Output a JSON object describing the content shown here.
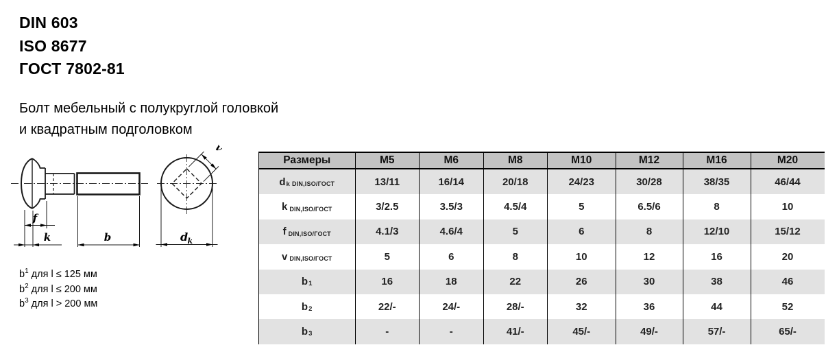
{
  "standards": [
    "DIN 603",
    "ISO 8677",
    "ГОСТ 7802-81"
  ],
  "title": {
    "line1": "Болт мебельный с полукруглой головкой",
    "line2": "и квадратным подголовком"
  },
  "drawing": {
    "labels": {
      "f": "f",
      "k": "k",
      "b": "b",
      "v": "v",
      "dk_main": "d",
      "dk_sub": "k"
    }
  },
  "footnotes": [
    {
      "main": "b",
      "sup": "1",
      "rest": "для l ≤ 125 мм"
    },
    {
      "main": "b",
      "sup": "2",
      "rest": "для l ≤ 200 мм"
    },
    {
      "main": "b",
      "sup": "3",
      "rest": "для l > 200 мм"
    }
  ],
  "table": {
    "headers": [
      "Размеры",
      "M5",
      "M6",
      "M8",
      "M10",
      "M12",
      "M16",
      "M20"
    ],
    "rows": [
      {
        "main": "d",
        "sub": "k",
        "suffix": "DIN,ISO/ГОСТ",
        "values": [
          "13/11",
          "16/14",
          "20/18",
          "24/23",
          "30/28",
          "38/35",
          "46/44"
        ]
      },
      {
        "main": "k",
        "sub": "",
        "suffix": "DIN,ISO/ГОСТ",
        "values": [
          "3/2.5",
          "3.5/3",
          "4.5/4",
          "5",
          "6.5/6",
          "8",
          "10"
        ]
      },
      {
        "main": "f",
        "sub": "",
        "suffix": "DIN,ISO/ГОСТ",
        "values": [
          "4.1/3",
          "4.6/4",
          "5",
          "6",
          "8",
          "12/10",
          "15/12"
        ]
      },
      {
        "main": "v",
        "sub": "",
        "suffix": "DIN,ISO/ГОСТ",
        "values": [
          "5",
          "6",
          "8",
          "10",
          "12",
          "16",
          "20"
        ]
      },
      {
        "main": "b",
        "sub": "1",
        "suffix": "",
        "values": [
          "16",
          "18",
          "22",
          "26",
          "30",
          "38",
          "46"
        ]
      },
      {
        "main": "b",
        "sub": "2",
        "suffix": "",
        "values": [
          "22/-",
          "24/-",
          "28/-",
          "32",
          "36",
          "44",
          "52"
        ]
      },
      {
        "main": "b",
        "sub": "3",
        "suffix": "",
        "values": [
          "-",
          "-",
          "41/-",
          "45/-",
          "49/-",
          "57/-",
          "65/-"
        ]
      }
    ]
  },
  "colors": {
    "header_bg": "#c3c3c3",
    "row_alt_bg": "#e2e2e2",
    "row_bg": "#ffffff",
    "border": "#000000",
    "line": "#1a1a1a"
  }
}
